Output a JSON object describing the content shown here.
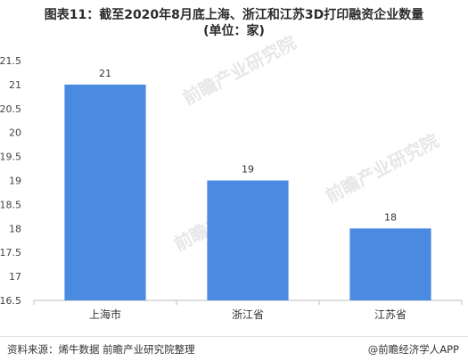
{
  "header": {
    "title_line1": "图表11：截至2020年8月底上海、浙江和江苏3D打印融资企业数量",
    "title_line2": "(单位：家)"
  },
  "chart_data": {
    "type": "bar",
    "title": "图表11：截至2020年8月底上海、浙江和江苏3D打印融资企业数量 (单位：家)",
    "categories": [
      "上海市",
      "浙江省",
      "江苏省"
    ],
    "values": [
      21,
      19,
      18
    ],
    "value_labels": [
      "21",
      "19",
      "18"
    ],
    "ylim": [
      16.5,
      21.5
    ],
    "yticks": [
      "16.5",
      "17",
      "17.5",
      "18",
      "18.5",
      "19",
      "19.5",
      "20",
      "20.5",
      "21",
      "21.5"
    ],
    "ytick_values": [
      16.5,
      17,
      17.5,
      18,
      18.5,
      19,
      19.5,
      20,
      20.5,
      21,
      21.5
    ],
    "grid": false,
    "bar_color": "#4a8ae0",
    "xlabel": "",
    "ylabel": ""
  },
  "footer": {
    "source": "资料来源：烯牛数据 前瞻产业研究院整理",
    "brand": "@前瞻经济学人APP"
  },
  "watermarks": [
    "前瞻产业研究院",
    "前瞻产业研究院",
    "前瞻产业研究院"
  ]
}
